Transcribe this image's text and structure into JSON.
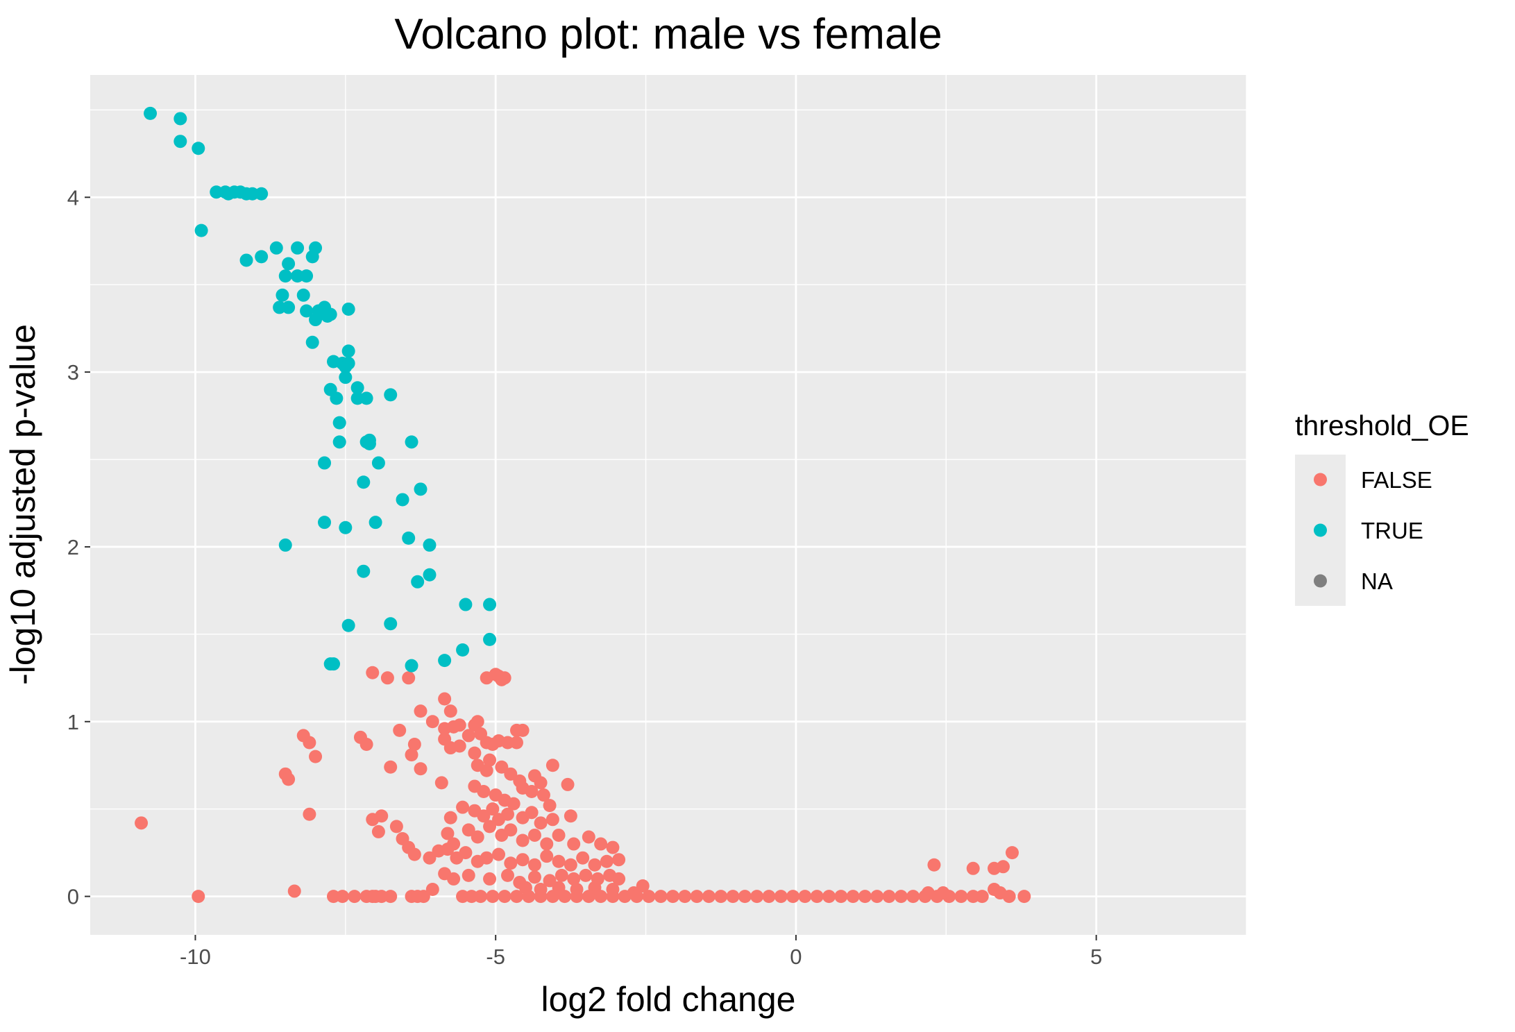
{
  "chart_data": {
    "type": "scatter",
    "title": "Volcano plot: male vs female",
    "xlabel": "log2 fold change",
    "ylabel": "-log10 adjusted p-value",
    "xlim": [
      -11.75,
      7.5
    ],
    "ylim": [
      -0.22,
      4.7
    ],
    "x_ticks": [
      -10,
      -5,
      0,
      5
    ],
    "x_tick_labels": [
      "-10",
      "-5",
      "0",
      "5"
    ],
    "y_ticks": [
      0,
      1,
      2,
      3,
      4
    ],
    "y_tick_labels": [
      "0",
      "1",
      "2",
      "3",
      "4"
    ],
    "grid": true,
    "legend": {
      "title": "threshold_OE",
      "position": "right",
      "entries": [
        {
          "label": "FALSE",
          "color": "#F8766D"
        },
        {
          "label": "TRUE",
          "color": "#00BFC4"
        },
        {
          "label": "NA",
          "color": "#7F7F7F"
        }
      ]
    },
    "series": [
      {
        "name": "TRUE",
        "color": "#00BFC4",
        "points": [
          [
            -10.75,
            4.48
          ],
          [
            -10.25,
            4.45
          ],
          [
            -10.25,
            4.32
          ],
          [
            -9.95,
            4.28
          ],
          [
            -9.9,
            3.81
          ],
          [
            -9.65,
            4.03
          ],
          [
            -9.5,
            4.03
          ],
          [
            -9.45,
            4.02
          ],
          [
            -9.35,
            4.03
          ],
          [
            -9.25,
            4.03
          ],
          [
            -9.15,
            4.02
          ],
          [
            -9.05,
            4.02
          ],
          [
            -8.9,
            4.02
          ],
          [
            -9.15,
            3.64
          ],
          [
            -8.9,
            3.66
          ],
          [
            -8.65,
            3.71
          ],
          [
            -8.45,
            3.62
          ],
          [
            -8.5,
            3.55
          ],
          [
            -8.3,
            3.71
          ],
          [
            -8.3,
            3.55
          ],
          [
            -8.15,
            3.55
          ],
          [
            -8.05,
            3.66
          ],
          [
            -8.0,
            3.71
          ],
          [
            -8.55,
            3.44
          ],
          [
            -8.6,
            3.37
          ],
          [
            -8.45,
            3.37
          ],
          [
            -8.2,
            3.44
          ],
          [
            -8.15,
            3.35
          ],
          [
            -8.0,
            3.3
          ],
          [
            -7.95,
            3.35
          ],
          [
            -7.85,
            3.37
          ],
          [
            -7.8,
            3.32
          ],
          [
            -7.75,
            3.33
          ],
          [
            -7.45,
            3.36
          ],
          [
            -8.05,
            3.17
          ],
          [
            -7.45,
            3.12
          ],
          [
            -7.7,
            3.06
          ],
          [
            -7.55,
            3.05
          ],
          [
            -7.5,
            3.03
          ],
          [
            -7.45,
            3.05
          ],
          [
            -7.5,
            2.97
          ],
          [
            -7.3,
            2.91
          ],
          [
            -7.3,
            2.85
          ],
          [
            -7.15,
            2.85
          ],
          [
            -6.75,
            2.87
          ],
          [
            -7.75,
            2.9
          ],
          [
            -7.65,
            2.85
          ],
          [
            -7.6,
            2.71
          ],
          [
            -7.6,
            2.6
          ],
          [
            -7.15,
            2.6
          ],
          [
            -7.1,
            2.59
          ],
          [
            -7.1,
            2.61
          ],
          [
            -6.4,
            2.6
          ],
          [
            -7.85,
            2.48
          ],
          [
            -6.95,
            2.48
          ],
          [
            -7.2,
            2.37
          ],
          [
            -6.25,
            2.33
          ],
          [
            -6.55,
            2.27
          ],
          [
            -7.85,
            2.14
          ],
          [
            -7.5,
            2.11
          ],
          [
            -7.0,
            2.14
          ],
          [
            -8.5,
            2.01
          ],
          [
            -6.45,
            2.05
          ],
          [
            -6.1,
            2.01
          ],
          [
            -7.2,
            1.86
          ],
          [
            -6.3,
            1.8
          ],
          [
            -6.1,
            1.84
          ],
          [
            -5.5,
            1.67
          ],
          [
            -5.1,
            1.67
          ],
          [
            -7.45,
            1.55
          ],
          [
            -6.75,
            1.56
          ],
          [
            -5.1,
            1.47
          ],
          [
            -5.55,
            1.41
          ],
          [
            -5.85,
            1.35
          ],
          [
            -7.75,
            1.33
          ],
          [
            -7.7,
            1.33
          ],
          [
            -6.4,
            1.32
          ]
        ]
      },
      {
        "name": "FALSE",
        "color": "#F8766D",
        "points": [
          [
            -10.9,
            0.42
          ],
          [
            -9.95,
            0.0
          ],
          [
            -8.35,
            0.03
          ],
          [
            -8.5,
            0.7
          ],
          [
            -8.45,
            0.67
          ],
          [
            -8.1,
            0.47
          ],
          [
            -8.2,
            0.92
          ],
          [
            -8.1,
            0.88
          ],
          [
            -8.0,
            0.8
          ],
          [
            -7.7,
            0.0
          ],
          [
            -7.55,
            0.0
          ],
          [
            -7.35,
            0.0
          ],
          [
            -7.15,
            0.0
          ],
          [
            -7.05,
            0.0
          ],
          [
            -7.0,
            0.0
          ],
          [
            -6.9,
            0.0
          ],
          [
            -6.75,
            0.0
          ],
          [
            -6.4,
            0.0
          ],
          [
            -6.3,
            0.0
          ],
          [
            -6.2,
            0.0
          ],
          [
            -6.05,
            0.04
          ],
          [
            -7.05,
            1.28
          ],
          [
            -6.8,
            1.25
          ],
          [
            -6.45,
            1.25
          ],
          [
            -6.25,
            1.06
          ],
          [
            -6.05,
            1.0
          ],
          [
            -5.85,
            1.13
          ],
          [
            -5.75,
            1.06
          ],
          [
            -5.6,
            0.98
          ],
          [
            -5.85,
            0.96
          ],
          [
            -5.7,
            0.97
          ],
          [
            -5.45,
            0.92
          ],
          [
            -5.35,
            0.98
          ],
          [
            -5.3,
            1.0
          ],
          [
            -5.25,
            0.93
          ],
          [
            -5.15,
            1.25
          ],
          [
            -5.0,
            1.27
          ],
          [
            -4.9,
            1.24
          ],
          [
            -4.85,
            1.25
          ],
          [
            -4.95,
            1.26
          ],
          [
            -4.65,
            0.95
          ],
          [
            -4.55,
            0.95
          ],
          [
            -4.65,
            0.88
          ],
          [
            -7.25,
            0.91
          ],
          [
            -7.15,
            0.87
          ],
          [
            -6.6,
            0.95
          ],
          [
            -6.35,
            0.87
          ],
          [
            -6.4,
            0.81
          ],
          [
            -6.25,
            0.73
          ],
          [
            -6.75,
            0.74
          ],
          [
            -5.85,
            0.9
          ],
          [
            -5.75,
            0.85
          ],
          [
            -5.6,
            0.86
          ],
          [
            -5.35,
            0.82
          ],
          [
            -5.15,
            0.88
          ],
          [
            -5.05,
            0.87
          ],
          [
            -4.95,
            0.89
          ],
          [
            -4.8,
            0.88
          ],
          [
            -5.3,
            0.75
          ],
          [
            -5.15,
            0.72
          ],
          [
            -5.1,
            0.78
          ],
          [
            -4.9,
            0.74
          ],
          [
            -4.75,
            0.7
          ],
          [
            -4.6,
            0.66
          ],
          [
            -4.35,
            0.69
          ],
          [
            -4.25,
            0.65
          ],
          [
            -4.05,
            0.75
          ],
          [
            -3.8,
            0.64
          ],
          [
            -5.9,
            0.65
          ],
          [
            -5.35,
            0.63
          ],
          [
            -5.2,
            0.6
          ],
          [
            -5.0,
            0.58
          ],
          [
            -4.85,
            0.55
          ],
          [
            -4.7,
            0.53
          ],
          [
            -4.55,
            0.62
          ],
          [
            -4.4,
            0.6
          ],
          [
            -4.2,
            0.58
          ],
          [
            -4.1,
            0.52
          ],
          [
            -5.55,
            0.51
          ],
          [
            -5.35,
            0.49
          ],
          [
            -5.2,
            0.46
          ],
          [
            -5.05,
            0.5
          ],
          [
            -4.95,
            0.44
          ],
          [
            -4.8,
            0.47
          ],
          [
            -4.55,
            0.45
          ],
          [
            -4.4,
            0.48
          ],
          [
            -4.25,
            0.42
          ],
          [
            -4.05,
            0.44
          ],
          [
            -3.75,
            0.46
          ],
          [
            -5.75,
            0.45
          ],
          [
            -5.8,
            0.36
          ],
          [
            -5.7,
            0.3
          ],
          [
            -5.45,
            0.38
          ],
          [
            -5.3,
            0.34
          ],
          [
            -5.1,
            0.4
          ],
          [
            -4.9,
            0.35
          ],
          [
            -4.75,
            0.38
          ],
          [
            -4.55,
            0.32
          ],
          [
            -4.35,
            0.35
          ],
          [
            -4.15,
            0.3
          ],
          [
            -3.95,
            0.35
          ],
          [
            -3.7,
            0.3
          ],
          [
            -3.45,
            0.34
          ],
          [
            -3.25,
            0.3
          ],
          [
            -3.05,
            0.28
          ],
          [
            -7.05,
            0.44
          ],
          [
            -6.9,
            0.46
          ],
          [
            -6.95,
            0.37
          ],
          [
            -6.65,
            0.4
          ],
          [
            -6.55,
            0.33
          ],
          [
            -6.45,
            0.28
          ],
          [
            -6.35,
            0.24
          ],
          [
            -6.1,
            0.22
          ],
          [
            -5.95,
            0.26
          ],
          [
            -5.8,
            0.27
          ],
          [
            -5.65,
            0.22
          ],
          [
            -5.5,
            0.25
          ],
          [
            -5.3,
            0.2
          ],
          [
            -5.15,
            0.22
          ],
          [
            -4.95,
            0.24
          ],
          [
            -4.75,
            0.19
          ],
          [
            -4.55,
            0.21
          ],
          [
            -4.35,
            0.18
          ],
          [
            -4.15,
            0.23
          ],
          [
            -3.95,
            0.2
          ],
          [
            -3.75,
            0.18
          ],
          [
            -3.55,
            0.22
          ],
          [
            -3.35,
            0.18
          ],
          [
            -3.15,
            0.2
          ],
          [
            -2.95,
            0.21
          ],
          [
            -5.85,
            0.13
          ],
          [
            -5.7,
            0.1
          ],
          [
            -5.45,
            0.12
          ],
          [
            -5.1,
            0.1
          ],
          [
            -4.8,
            0.12
          ],
          [
            -4.6,
            0.08
          ],
          [
            -4.35,
            0.11
          ],
          [
            -4.1,
            0.09
          ],
          [
            -3.9,
            0.12
          ],
          [
            -3.7,
            0.1
          ],
          [
            -3.5,
            0.12
          ],
          [
            -3.3,
            0.1
          ],
          [
            -3.1,
            0.12
          ],
          [
            -2.95,
            0.1
          ],
          [
            -4.5,
            0.05
          ],
          [
            -4.25,
            0.04
          ],
          [
            -3.95,
            0.05
          ],
          [
            -3.65,
            0.04
          ],
          [
            -3.35,
            0.05
          ],
          [
            -3.05,
            0.04
          ],
          [
            -2.55,
            0.06
          ],
          [
            -2.7,
            0.02
          ],
          [
            -5.55,
            0.0
          ],
          [
            -5.4,
            0.0
          ],
          [
            -5.25,
            0.0
          ],
          [
            -5.05,
            0.0
          ],
          [
            -4.85,
            0.0
          ],
          [
            -4.65,
            0.0
          ],
          [
            -4.45,
            0.0
          ],
          [
            -4.25,
            0.0
          ],
          [
            -4.05,
            0.0
          ],
          [
            -3.85,
            0.0
          ],
          [
            -3.65,
            0.0
          ],
          [
            -3.45,
            0.0
          ],
          [
            -3.25,
            0.0
          ],
          [
            -3.05,
            0.0
          ],
          [
            -2.85,
            0.0
          ],
          [
            -2.65,
            0.0
          ],
          [
            -2.45,
            0.0
          ],
          [
            -2.25,
            0.0
          ],
          [
            -2.05,
            0.0
          ],
          [
            -1.85,
            0.0
          ],
          [
            -1.65,
            0.0
          ],
          [
            -1.45,
            0.0
          ],
          [
            -1.25,
            0.0
          ],
          [
            -1.05,
            0.0
          ],
          [
            -0.85,
            0.0
          ],
          [
            -0.65,
            0.0
          ],
          [
            -0.45,
            0.0
          ],
          [
            -0.25,
            0.0
          ],
          [
            -0.05,
            0.0
          ],
          [
            0.15,
            0.0
          ],
          [
            0.35,
            0.0
          ],
          [
            0.55,
            0.0
          ],
          [
            0.75,
            0.0
          ],
          [
            0.95,
            0.0
          ],
          [
            1.15,
            0.0
          ],
          [
            1.35,
            0.0
          ],
          [
            1.55,
            0.0
          ],
          [
            1.75,
            0.0
          ],
          [
            1.95,
            0.0
          ],
          [
            2.15,
            0.0
          ],
          [
            2.35,
            0.0
          ],
          [
            2.55,
            0.0
          ],
          [
            2.75,
            0.0
          ],
          [
            2.95,
            0.0
          ],
          [
            3.1,
            0.0
          ],
          [
            3.55,
            0.0
          ],
          [
            3.8,
            0.0
          ],
          [
            2.2,
            0.02
          ],
          [
            2.45,
            0.02
          ],
          [
            3.3,
            0.04
          ],
          [
            3.4,
            0.02
          ],
          [
            2.3,
            0.18
          ],
          [
            2.95,
            0.16
          ],
          [
            3.3,
            0.16
          ],
          [
            3.45,
            0.17
          ],
          [
            3.6,
            0.25
          ]
        ]
      }
    ]
  }
}
